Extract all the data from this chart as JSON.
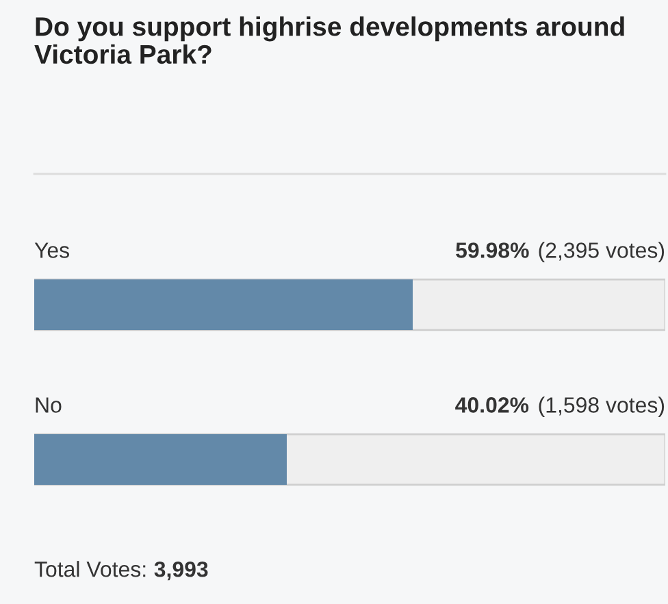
{
  "chart_data": {
    "type": "bar",
    "orientation": "horizontal",
    "title": "Do you support highrise developments around Victoria Park?",
    "categories": [
      "Yes",
      "No"
    ],
    "values": [
      59.98,
      40.02
    ],
    "value_labels": [
      "59.98% (2,395 votes)",
      "40.02% (1,598 votes)"
    ],
    "color": "#6389a9",
    "annotations": [
      "Total Votes: 3,993"
    ]
  }
}
